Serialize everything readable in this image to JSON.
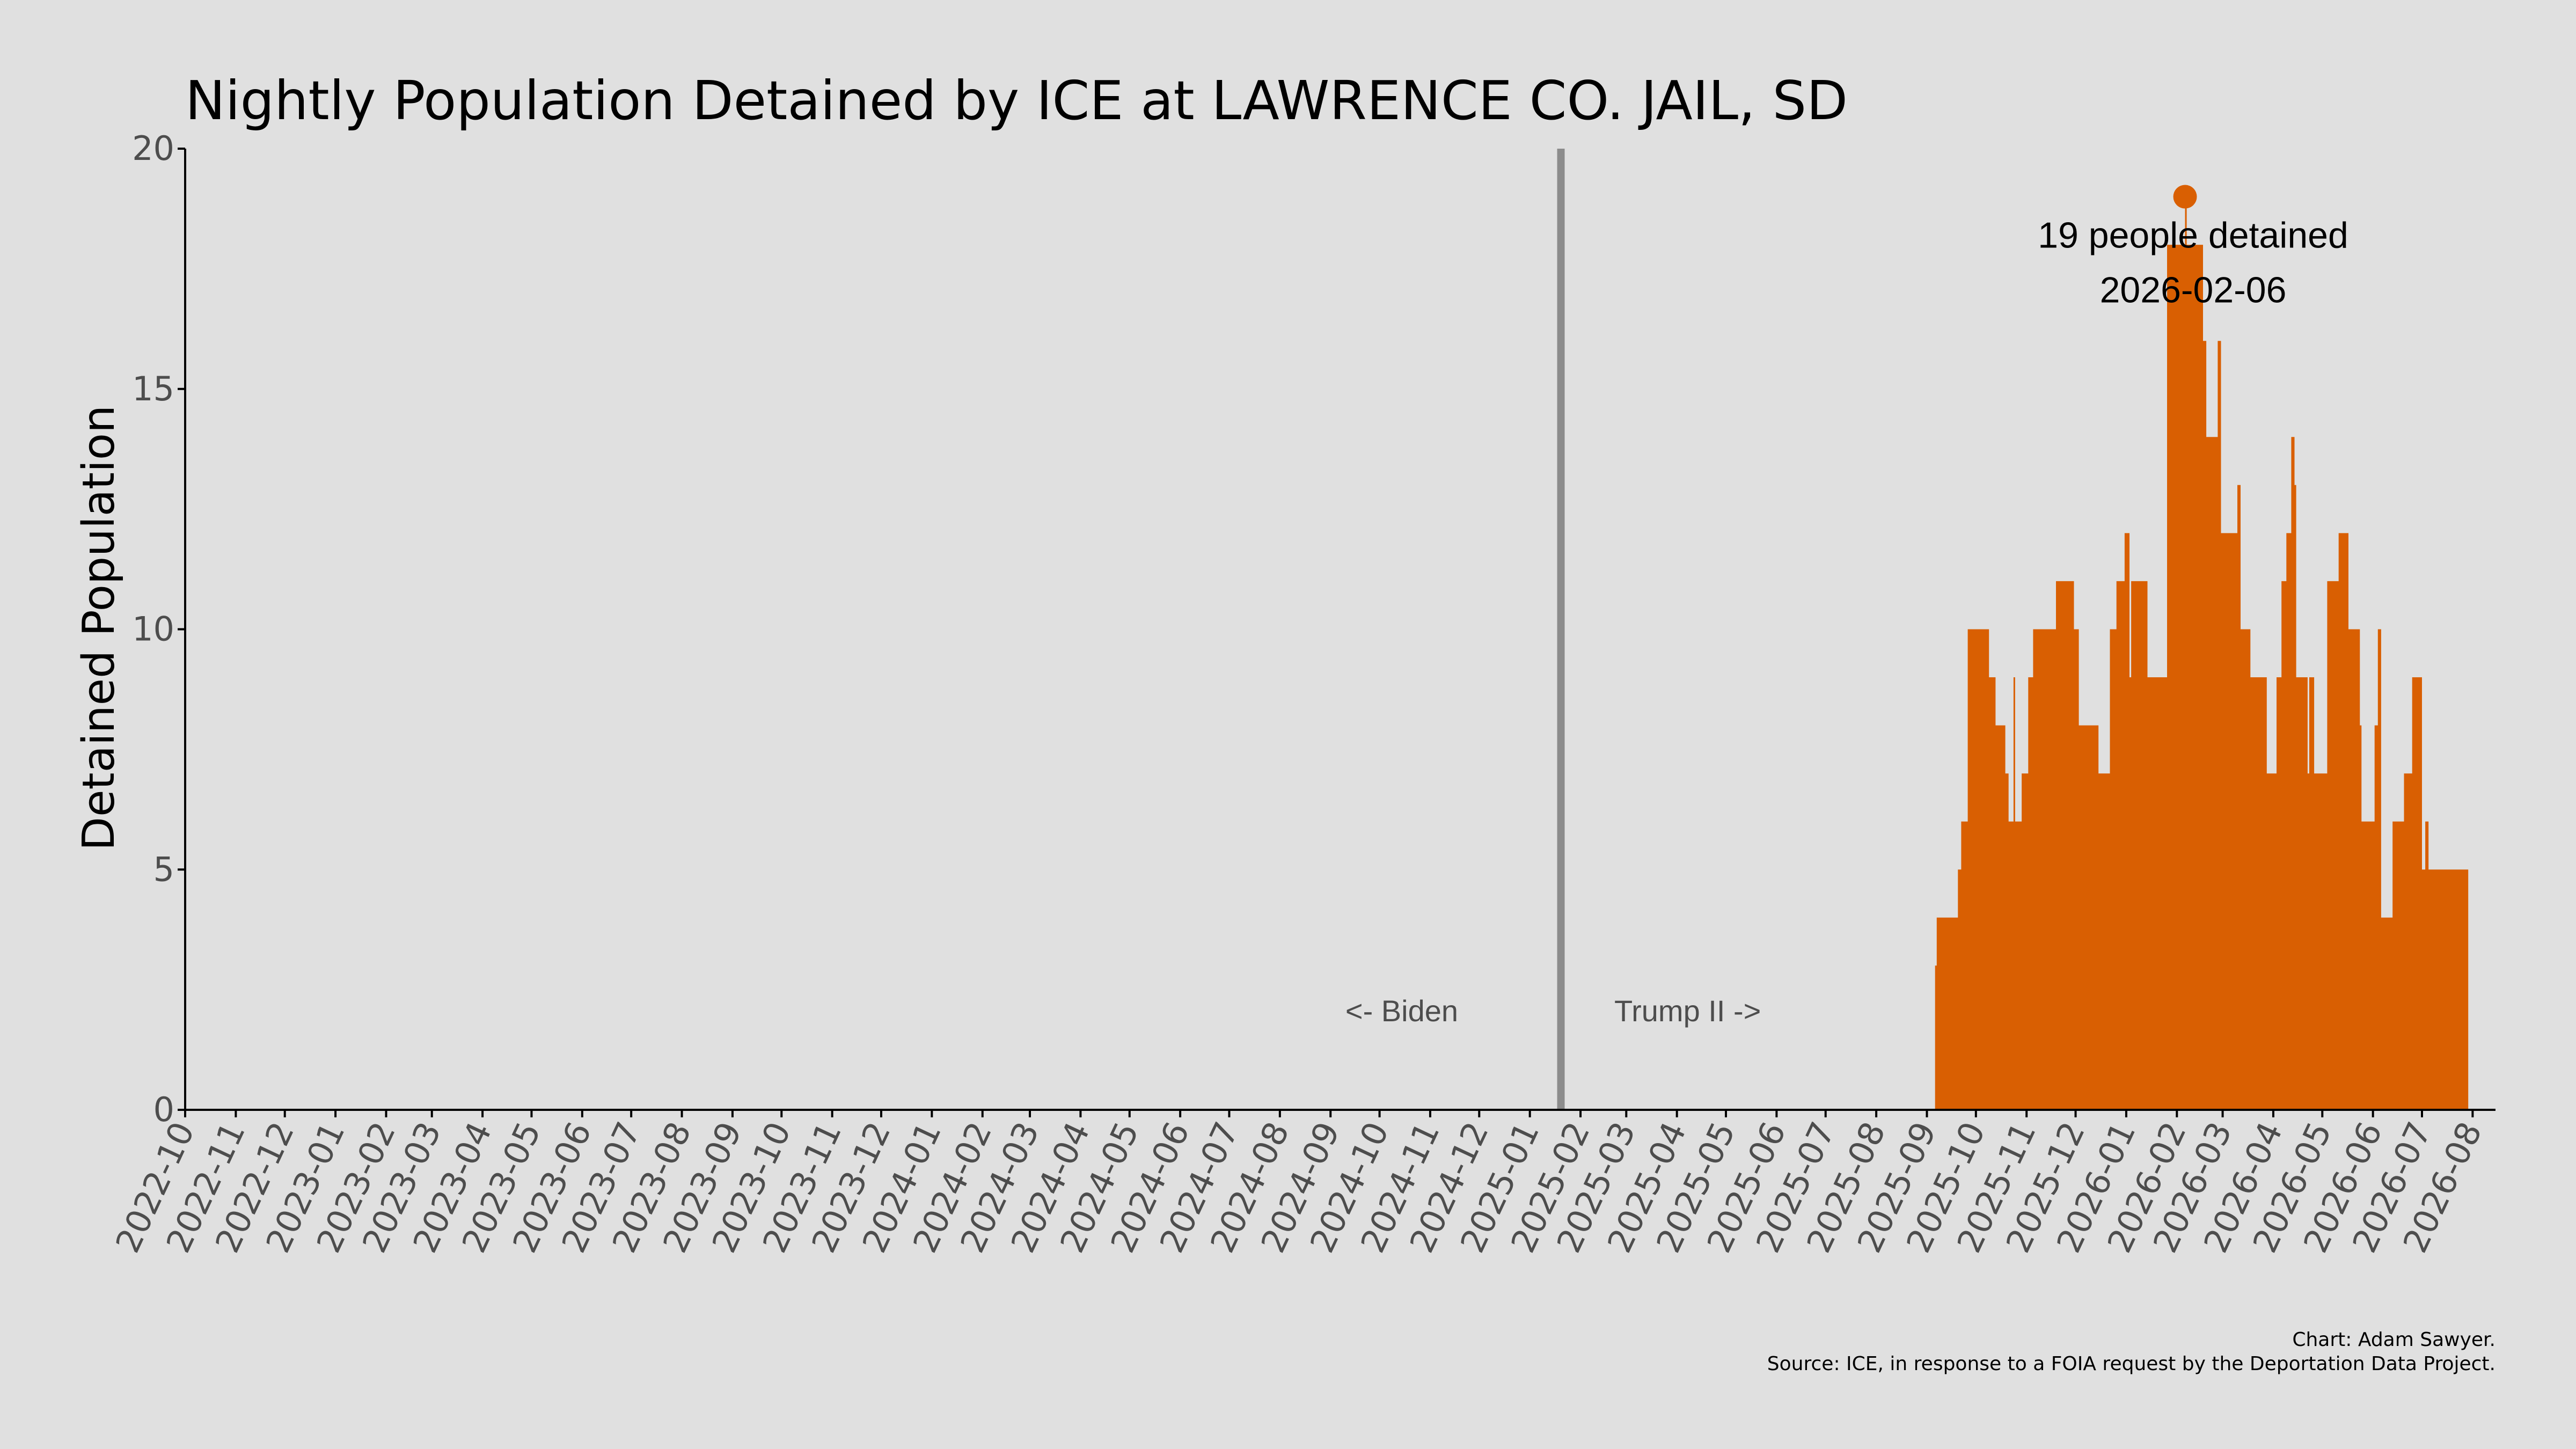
{
  "colors": {
    "bar": "#D95F02",
    "divider": "#8c8c8c",
    "background": "#e0e0e0",
    "axis": "#000000",
    "tick_label": "#4d4d4d"
  },
  "chart_data": {
    "type": "area",
    "title": "Nightly Population Detained by ICE at LAWRENCE CO. JAIL, SD",
    "xlabel": "",
    "ylabel": "Detained Population",
    "ylim": [
      0,
      20
    ],
    "yticks": [
      0,
      5,
      10,
      15,
      20
    ],
    "xlim": [
      "2022-10-01",
      "2026-08-15"
    ],
    "x_tick_labels": [
      "2022-10",
      "2022-11",
      "2022-12",
      "2023-01",
      "2023-02",
      "2023-03",
      "2023-04",
      "2023-05",
      "2023-06",
      "2023-07",
      "2023-08",
      "2023-09",
      "2023-10",
      "2023-11",
      "2023-12",
      "2024-01",
      "2024-02",
      "2024-03",
      "2024-04",
      "2024-05",
      "2024-06",
      "2024-07",
      "2024-08",
      "2024-09",
      "2024-10",
      "2024-11",
      "2024-12",
      "2025-01",
      "2025-02",
      "2025-03",
      "2025-04",
      "2025-05",
      "2025-06",
      "2025-07",
      "2025-08",
      "2025-09",
      "2025-10",
      "2025-11",
      "2025-12",
      "2026-01",
      "2026-02",
      "2026-03",
      "2026-04",
      "2026-05",
      "2026-06",
      "2026-07",
      "2026-08"
    ],
    "grid": false,
    "divider": {
      "date": "2025-01-20",
      "left_label": "<- Biden",
      "right_label": "Trump II ->"
    },
    "peak": {
      "date": "2026-02-06",
      "value": 19,
      "line1": "19 people detained",
      "line2": "2026-02-06"
    },
    "series": [
      {
        "points": [
          [
            "2025-09-06",
            3
          ],
          [
            "2025-09-07",
            4
          ],
          [
            "2025-09-20",
            5
          ],
          [
            "2025-09-22",
            6
          ],
          [
            "2025-09-26",
            10
          ],
          [
            "2025-10-09",
            9
          ],
          [
            "2025-10-13",
            8
          ],
          [
            "2025-10-19",
            7
          ],
          [
            "2025-10-21",
            6
          ],
          [
            "2025-10-24",
            9
          ],
          [
            "2025-10-25",
            6
          ],
          [
            "2025-10-29",
            7
          ],
          [
            "2025-11-02",
            9
          ],
          [
            "2025-11-05",
            10
          ],
          [
            "2025-11-19",
            11
          ],
          [
            "2025-11-30",
            10
          ],
          [
            "2025-12-03",
            8
          ],
          [
            "2025-12-15",
            7
          ],
          [
            "2025-12-22",
            10
          ],
          [
            "2025-12-26",
            11
          ],
          [
            "2025-12-31",
            12
          ],
          [
            "2026-01-03",
            9
          ],
          [
            "2026-01-04",
            11
          ],
          [
            "2026-01-14",
            9
          ],
          [
            "2026-01-22",
            9
          ],
          [
            "2026-01-26",
            18
          ],
          [
            "2026-02-06",
            19
          ],
          [
            "2026-02-07",
            18
          ],
          [
            "2026-02-17",
            16
          ],
          [
            "2026-02-19",
            14
          ],
          [
            "2026-02-26",
            16
          ],
          [
            "2026-02-28",
            12
          ],
          [
            "2026-03-10",
            13
          ],
          [
            "2026-03-12",
            10
          ],
          [
            "2026-03-18",
            9
          ],
          [
            "2026-03-28",
            7
          ],
          [
            "2026-04-03",
            9
          ],
          [
            "2026-04-06",
            11
          ],
          [
            "2026-04-09",
            12
          ],
          [
            "2026-04-12",
            14
          ],
          [
            "2026-04-14",
            13
          ],
          [
            "2026-04-15",
            9
          ],
          [
            "2026-04-22",
            7
          ],
          [
            "2026-04-23",
            9
          ],
          [
            "2026-04-26",
            7
          ],
          [
            "2026-05-04",
            11
          ],
          [
            "2026-05-11",
            12
          ],
          [
            "2026-05-17",
            10
          ],
          [
            "2026-05-24",
            8
          ],
          [
            "2026-05-25",
            6
          ],
          [
            "2026-06-02",
            8
          ],
          [
            "2026-06-04",
            10
          ],
          [
            "2026-06-06",
            4
          ],
          [
            "2026-06-13",
            6
          ],
          [
            "2026-06-20",
            7
          ],
          [
            "2026-06-25",
            9
          ],
          [
            "2026-07-01",
            5
          ],
          [
            "2026-07-03",
            6
          ],
          [
            "2026-07-05",
            5
          ],
          [
            "2026-07-28",
            5
          ]
        ]
      }
    ],
    "caption_line1": "Chart: Adam Sawyer.",
    "caption_line2": "Source: ICE, in response to a FOIA request by the Deportation Data Project."
  }
}
